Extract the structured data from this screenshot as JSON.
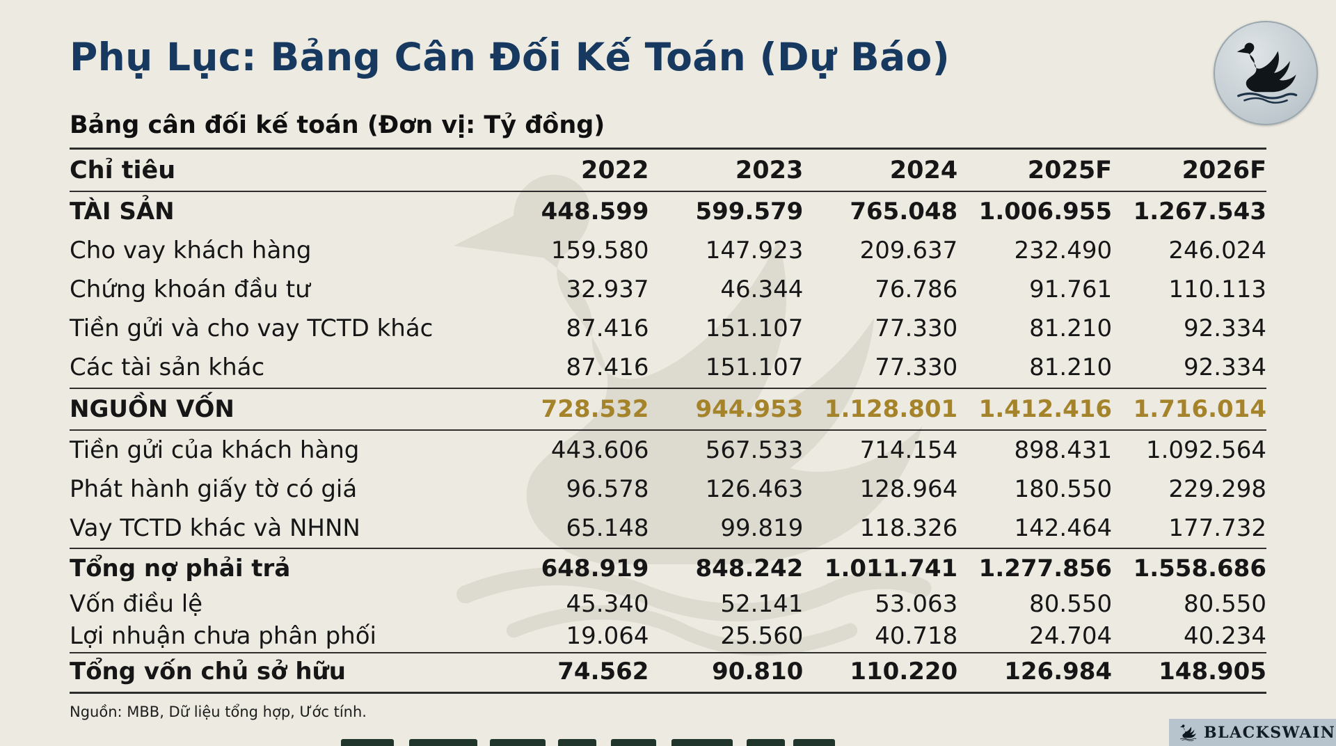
{
  "colors": {
    "background": "#ECEAE1",
    "title": "#17395F",
    "text": "#161616",
    "accent_gold": "#A5832B",
    "rule": "#2D2D2D",
    "badge_background": "#B7C4CD"
  },
  "icons": {
    "header_logo": "black-swan-icon",
    "watermark": "black-swan-watermark-icon",
    "badge": "black-swan-icon"
  },
  "header": {
    "title": "Phụ Lục: Bảng Cân Đối Kế Toán (Dự Báo)"
  },
  "table": {
    "caption": "Bảng cân đối kế toán (Đơn vị: Tỷ đồng)",
    "columns": [
      "Chỉ tiêu",
      "2022",
      "2023",
      "2024",
      "2025F",
      "2026F"
    ],
    "rows": [
      {
        "label": "TÀI SẢN",
        "type": "section",
        "values": [
          "448.599",
          "599.579",
          "765.048",
          "1.006.955",
          "1.267.543"
        ]
      },
      {
        "label": "Cho vay khách hàng",
        "type": "item",
        "values": [
          "159.580",
          "147.923",
          "209.637",
          "232.490",
          "246.024"
        ]
      },
      {
        "label": "Chứng khoán đầu tư",
        "type": "item",
        "values": [
          "32.937",
          "46.344",
          "76.786",
          "91.761",
          "110.113"
        ]
      },
      {
        "label": "Tiền gửi và cho vay TCTD khác",
        "type": "item",
        "values": [
          "87.416",
          "151.107",
          "77.330",
          "81.210",
          "92.334"
        ]
      },
      {
        "label": "Các tài sản khác",
        "type": "item",
        "values": [
          "87.416",
          "151.107",
          "77.330",
          "81.210",
          "92.334"
        ]
      },
      {
        "label": "NGUỒN VỐN",
        "type": "section-accent",
        "values": [
          "728.532",
          "944.953",
          "1.128.801",
          "1.412.416",
          "1.716.014"
        ]
      },
      {
        "label": "Tiền gửi của khách hàng",
        "type": "item",
        "values": [
          "443.606",
          "567.533",
          "714.154",
          "898.431",
          "1.092.564"
        ]
      },
      {
        "label": "Phát hành giấy tờ có giá",
        "type": "item",
        "values": [
          "96.578",
          "126.463",
          "128.964",
          "180.550",
          "229.298"
        ]
      },
      {
        "label": "Vay TCTD khác và NHNN",
        "type": "item",
        "values": [
          "65.148",
          "99.819",
          "118.326",
          "142.464",
          "177.732"
        ]
      },
      {
        "label": "Tổng nợ phải trả",
        "type": "total",
        "values": [
          "648.919",
          "848.242",
          "1.011.741",
          "1.277.856",
          "1.558.686"
        ]
      },
      {
        "label": "Vốn điều lệ",
        "type": "item-tight",
        "values": [
          "45.340",
          "52.141",
          "53.063",
          "80.550",
          "80.550"
        ]
      },
      {
        "label": "Lợi nhuận chưa phân phối",
        "type": "item-tight",
        "values": [
          "19.064",
          "25.560",
          "40.718",
          "24.704",
          "40.234"
        ]
      },
      {
        "label": "Tổng vốn chủ sở hữu",
        "type": "grand-total",
        "values": [
          "74.562",
          "90.810",
          "110.220",
          "126.984",
          "148.905"
        ]
      }
    ]
  },
  "footer": {
    "source": "Nguồn: MBB, Dữ liệu tổng hợp, Ước tính.",
    "brand": "BLACKSWAIN"
  }
}
